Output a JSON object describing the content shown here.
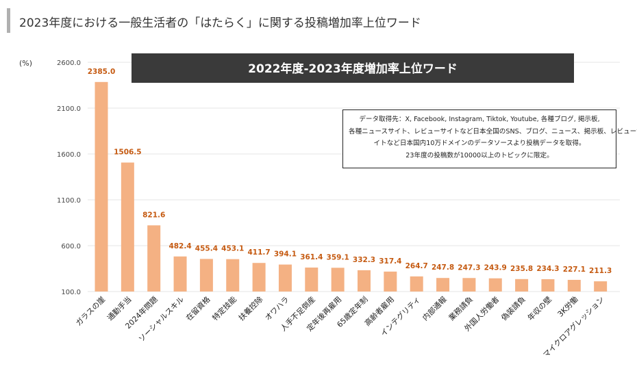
{
  "page": {
    "title": "2023年度における一般生活者の「はたらく」に関する投稿増加率上位ワード"
  },
  "chart_data": {
    "type": "bar",
    "title": "2022年度-2023年度増加率上位ワード",
    "ylabel": "(%)",
    "ylim": [
      100,
      2600
    ],
    "yticks": [
      "2600.0",
      "2100.0",
      "1600.0",
      "1100.0",
      "600.0",
      "100.0"
    ],
    "ytick_values": [
      2600,
      2100,
      1600,
      1100,
      600,
      100
    ],
    "categories": [
      "ガラスの崖",
      "通勤手当",
      "2024年問題",
      "ソーシャルスキル",
      "在留資格",
      "特定技能",
      "扶養控除",
      "オワハラ",
      "人手不足倒産",
      "定年後再雇用",
      "65歳定年制",
      "高齢者雇用",
      "インテグリティ",
      "内部通報",
      "業務請負",
      "外国人労働者",
      "偽装請負",
      "年収の壁",
      "3K労働",
      "マイクロアグレッション"
    ],
    "values": [
      2385.0,
      1506.5,
      821.6,
      482.4,
      455.4,
      453.1,
      411.7,
      394.1,
      361.4,
      359.1,
      332.3,
      317.4,
      264.7,
      247.8,
      247.3,
      243.9,
      235.8,
      234.3,
      227.1,
      211.3
    ],
    "value_labels": [
      "2385.0",
      "1506.5",
      "821.6",
      "482.4",
      "455.4",
      "453.1",
      "411.7",
      "394.1",
      "361.4",
      "359.1",
      "332.3",
      "317.4",
      "264.7",
      "247.8",
      "247.3",
      "243.9",
      "235.8",
      "234.3",
      "227.1",
      "211.3"
    ],
    "grid": true,
    "colors": {
      "bar": "#f4b183",
      "label": "#c55a11",
      "banner": "#3a3a3a",
      "grid": "#e6e6e6"
    }
  },
  "note": {
    "lines": [
      "データ取得先：X, Facebook, Instagram, Tiktok, Youtube, 各種ブログ, 掲示板,",
      "各種ニュースサイト、レビューサイトなど日本全国のSNS、ブログ、ニュース、掲示板、レビューサ",
      "イトなど日本国内10万ドメインのデータソースより投稿データを取得。",
      "23年度の投稿数が10000以上のトピックに限定。"
    ]
  }
}
